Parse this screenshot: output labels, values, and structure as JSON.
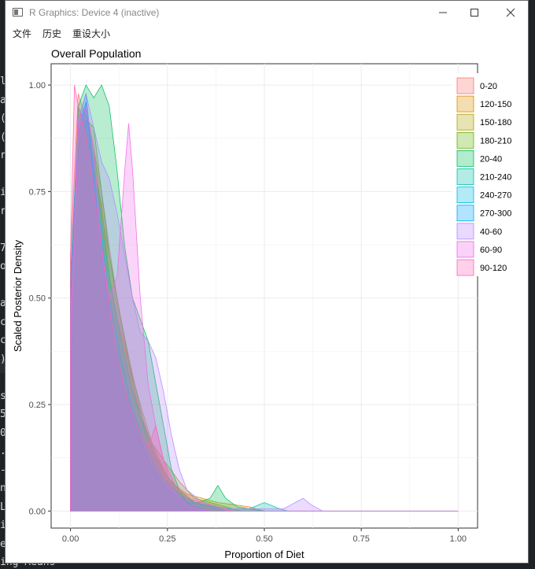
{
  "window": {
    "title": "R Graphics: Device 4 (inactive)",
    "minimize_icon": "minimize-icon",
    "maximize_icon": "maximize-icon",
    "close_icon": "close-icon"
  },
  "menu": {
    "items": [
      "文件",
      "历史",
      "重设大小"
    ]
  },
  "background_code": {
    "lines": [
      "l",
      "a",
      "(",
      "(",
      "r",
      "",
      "i",
      "r",
      "",
      "7",
      "o",
      "",
      "a",
      "c",
      "c",
      ")",
      "",
      "s",
      "5",
      "0",
      ".2",
      "-",
      "n",
      "L",
      "i",
      "e",
      "ing Means"
    ]
  },
  "chart_data": {
    "type": "area",
    "title": "Overall Population",
    "xlabel": "Proportion of Diet",
    "ylabel": "Scaled Posterior Density",
    "xlim": [
      -0.05,
      1.05
    ],
    "ylim": [
      -0.04,
      1.05
    ],
    "x_ticks": [
      "0.00",
      "0.25",
      "0.50",
      "0.75",
      "1.00"
    ],
    "y_ticks": [
      "0.00",
      "0.25",
      "0.50",
      "0.75",
      "1.00"
    ],
    "grid": true,
    "legend_position": "right",
    "series": [
      {
        "name": "0-20",
        "color": "#F8766D",
        "x": [
          0,
          0.02,
          0.04,
          0.06,
          0.08,
          0.1,
          0.12,
          0.14,
          0.17,
          0.2,
          0.23,
          0.25,
          0.28,
          0.32,
          0.36,
          0.4
        ],
        "values": [
          0.6,
          0.98,
          0.92,
          0.85,
          0.75,
          0.62,
          0.5,
          0.4,
          0.26,
          0.18,
          0.12,
          0.08,
          0.05,
          0.02,
          0.01,
          0
        ]
      },
      {
        "name": "120-150",
        "color": "#DB8E00",
        "x": [
          0,
          0.02,
          0.04,
          0.06,
          0.08,
          0.1,
          0.12,
          0.15,
          0.18,
          0.21,
          0.24,
          0.27,
          0.3,
          0.34,
          0.38,
          0.42,
          0.46,
          0.5
        ],
        "values": [
          0.5,
          0.95,
          0.9,
          0.8,
          0.72,
          0.55,
          0.45,
          0.35,
          0.22,
          0.15,
          0.09,
          0.06,
          0.04,
          0.03,
          0.02,
          0.015,
          0.01,
          0
        ]
      },
      {
        "name": "150-180",
        "color": "#AEA200",
        "x": [
          0,
          0.02,
          0.04,
          0.06,
          0.08,
          0.1,
          0.12,
          0.15,
          0.18,
          0.21,
          0.24,
          0.28,
          0.32,
          0.36,
          0.4,
          0.44
        ],
        "values": [
          0.55,
          0.9,
          0.95,
          0.85,
          0.7,
          0.6,
          0.5,
          0.35,
          0.25,
          0.16,
          0.12,
          0.07,
          0.03,
          0.02,
          0.01,
          0
        ]
      },
      {
        "name": "180-210",
        "color": "#64B200",
        "x": [
          0,
          0.02,
          0.04,
          0.06,
          0.08,
          0.1,
          0.13,
          0.16,
          0.19,
          0.22,
          0.25,
          0.28,
          0.32,
          0.36,
          0.4
        ],
        "values": [
          0.5,
          0.85,
          0.92,
          0.9,
          0.75,
          0.6,
          0.45,
          0.32,
          0.2,
          0.13,
          0.08,
          0.05,
          0.02,
          0.01,
          0
        ]
      },
      {
        "name": "20-40",
        "color": "#00BD5C",
        "x": [
          0,
          0.02,
          0.04,
          0.06,
          0.08,
          0.1,
          0.12,
          0.14,
          0.16,
          0.18,
          0.2,
          0.22,
          0.24,
          0.26,
          0.28,
          0.3,
          0.33,
          0.36,
          0.38,
          0.4,
          0.43,
          0.46,
          0.5
        ],
        "values": [
          0.3,
          0.95,
          1.0,
          0.97,
          1.0,
          0.95,
          0.8,
          0.62,
          0.5,
          0.45,
          0.4,
          0.3,
          0.2,
          0.1,
          0.05,
          0.02,
          0.02,
          0.03,
          0.06,
          0.03,
          0.01,
          0.005,
          0
        ]
      },
      {
        "name": "210-240",
        "color": "#00C1A7",
        "x": [
          0,
          0.02,
          0.04,
          0.06,
          0.08,
          0.1,
          0.13,
          0.16,
          0.2,
          0.24,
          0.28,
          0.32,
          0.4,
          0.46,
          0.5,
          0.54,
          0.56
        ],
        "values": [
          0.5,
          0.88,
          0.95,
          0.82,
          0.68,
          0.55,
          0.4,
          0.28,
          0.16,
          0.08,
          0.04,
          0.02,
          0.005,
          0.005,
          0.02,
          0.005,
          0
        ]
      },
      {
        "name": "240-270",
        "color": "#00BADE",
        "x": [
          0,
          0.02,
          0.04,
          0.06,
          0.08,
          0.1,
          0.13,
          0.16,
          0.2,
          0.24,
          0.28,
          0.32,
          0.36,
          0.4
        ],
        "values": [
          0.55,
          0.92,
          0.98,
          0.8,
          0.65,
          0.5,
          0.36,
          0.24,
          0.14,
          0.07,
          0.04,
          0.02,
          0.01,
          0
        ]
      },
      {
        "name": "270-300",
        "color": "#00A6FF",
        "x": [
          0,
          0.02,
          0.04,
          0.06,
          0.08,
          0.1,
          0.13,
          0.16,
          0.2,
          0.24,
          0.28,
          0.32,
          0.36
        ],
        "values": [
          0.5,
          0.9,
          0.96,
          0.78,
          0.6,
          0.46,
          0.32,
          0.22,
          0.12,
          0.06,
          0.03,
          0.01,
          0
        ]
      },
      {
        "name": "40-60",
        "color": "#B385FF",
        "x": [
          0,
          0.02,
          0.04,
          0.06,
          0.08,
          0.1,
          0.12,
          0.14,
          0.16,
          0.18,
          0.2,
          0.22,
          0.24,
          0.26,
          0.28,
          0.3,
          0.34,
          0.38,
          0.42,
          0.46,
          0.5,
          0.55,
          0.58,
          0.6,
          0.62,
          0.65
        ],
        "values": [
          0.45,
          0.92,
          0.98,
          0.9,
          0.82,
          0.78,
          0.7,
          0.6,
          0.5,
          0.42,
          0.4,
          0.36,
          0.28,
          0.18,
          0.1,
          0.05,
          0.02,
          0.01,
          0.005,
          0.005,
          0.005,
          0.005,
          0.02,
          0.03,
          0.015,
          0
        ]
      },
      {
        "name": "60-90",
        "color": "#EF67EB",
        "x": [
          0,
          0.02,
          0.04,
          0.06,
          0.08,
          0.1,
          0.12,
          0.14,
          0.15,
          0.16,
          0.18,
          0.2,
          0.22,
          0.24,
          0.26,
          0.28,
          0.3,
          0.33,
          0.36
        ],
        "values": [
          0.35,
          0.9,
          0.95,
          0.85,
          0.62,
          0.5,
          0.55,
          0.8,
          0.91,
          0.8,
          0.5,
          0.3,
          0.2,
          0.12,
          0.06,
          0.03,
          0.015,
          0.005,
          0
        ]
      },
      {
        "name": "90-120",
        "color": "#FF63B6",
        "x": [
          0,
          0.01,
          0.02,
          0.04,
          0.06,
          0.08,
          0.1,
          0.12,
          0.15,
          0.18,
          0.2,
          0.22,
          0.24,
          0.27,
          0.3,
          0.34,
          0.38,
          0.42
        ],
        "values": [
          0.6,
          1.0,
          0.95,
          0.88,
          0.75,
          0.62,
          0.48,
          0.36,
          0.25,
          0.18,
          0.15,
          0.2,
          0.12,
          0.06,
          0.03,
          0.02,
          0.01,
          0
        ]
      }
    ]
  }
}
